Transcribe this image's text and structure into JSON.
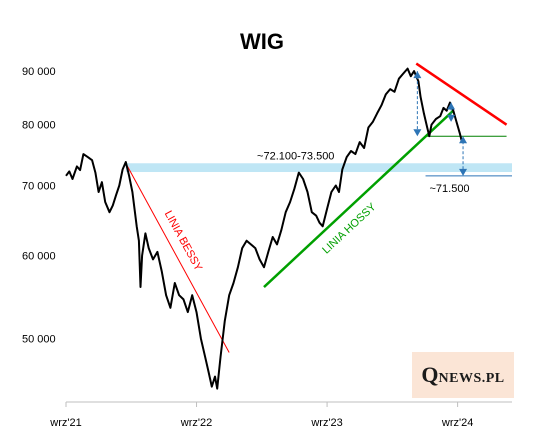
{
  "chart_data": {
    "type": "line",
    "title": "WIG",
    "y_scale": "log",
    "ylim": [
      43500,
      98500
    ],
    "xlim": [
      0,
      41
    ],
    "x_ticks": [
      {
        "x": 0,
        "label": "wrz'21"
      },
      {
        "x": 12,
        "label": "wrz'22"
      },
      {
        "x": 24,
        "label": "wrz'23"
      },
      {
        "x": 36,
        "label": "wrz'24"
      }
    ],
    "y_ticks": [
      {
        "y": 50000,
        "label": "50 000"
      },
      {
        "y": 60000,
        "label": "60 000"
      },
      {
        "y": 70000,
        "label": "70 000"
      },
      {
        "y": 80000,
        "label": "80 000"
      },
      {
        "y": 90000,
        "label": "90 000"
      }
    ],
    "series": [
      {
        "color": "#000000",
        "points": [
          [
            0,
            71500
          ],
          [
            0.3,
            72200
          ],
          [
            0.6,
            71000
          ],
          [
            1,
            73000
          ],
          [
            1.3,
            72400
          ],
          [
            1.6,
            75000
          ],
          [
            2,
            74500
          ],
          [
            2.4,
            74000
          ],
          [
            2.7,
            72000
          ],
          [
            3,
            69000
          ],
          [
            3.3,
            70500
          ],
          [
            3.6,
            67500
          ],
          [
            4,
            66000
          ],
          [
            4.3,
            67000
          ],
          [
            4.6,
            68500
          ],
          [
            4.9,
            70000
          ],
          [
            5.2,
            72500
          ],
          [
            5.5,
            73700
          ],
          [
            5.8,
            71500
          ],
          [
            6.1,
            69000
          ],
          [
            6.3,
            66500
          ],
          [
            6.5,
            64000
          ],
          [
            6.7,
            62000
          ],
          [
            6.85,
            56000
          ],
          [
            7,
            60000
          ],
          [
            7.3,
            63000
          ],
          [
            7.6,
            61000
          ],
          [
            8,
            59500
          ],
          [
            8.4,
            60500
          ],
          [
            8.8,
            58000
          ],
          [
            9.2,
            55000
          ],
          [
            9.6,
            53500
          ],
          [
            10,
            56500
          ],
          [
            10.4,
            55000
          ],
          [
            10.8,
            54500
          ],
          [
            11.2,
            53000
          ],
          [
            11.6,
            55000
          ],
          [
            12,
            53000
          ],
          [
            12.4,
            50000
          ],
          [
            12.8,
            48000
          ],
          [
            13.1,
            46500
          ],
          [
            13.4,
            45000
          ],
          [
            13.7,
            46000
          ],
          [
            13.9,
            44800
          ],
          [
            14.2,
            48000
          ],
          [
            14.6,
            52000
          ],
          [
            15,
            55000
          ],
          [
            15.4,
            56500
          ],
          [
            15.8,
            58500
          ],
          [
            16.2,
            61000
          ],
          [
            16.6,
            62000
          ],
          [
            17,
            61500
          ],
          [
            17.4,
            61000
          ],
          [
            17.8,
            59500
          ],
          [
            18.2,
            58500
          ],
          [
            18.6,
            60500
          ],
          [
            19,
            62500
          ],
          [
            19.4,
            61500
          ],
          [
            19.8,
            63500
          ],
          [
            20.2,
            66000
          ],
          [
            20.6,
            67500
          ],
          [
            21,
            69500
          ],
          [
            21.4,
            72000
          ],
          [
            21.8,
            71000
          ],
          [
            22.2,
            69000
          ],
          [
            22.6,
            66000
          ],
          [
            23,
            65500
          ],
          [
            23.3,
            64500
          ],
          [
            23.6,
            64000
          ],
          [
            24,
            66500
          ],
          [
            24.4,
            69000
          ],
          [
            24.8,
            70000
          ],
          [
            25.1,
            69000
          ],
          [
            25.4,
            72500
          ],
          [
            25.8,
            74500
          ],
          [
            26.2,
            75500
          ],
          [
            26.6,
            75000
          ],
          [
            27,
            77000
          ],
          [
            27.4,
            76000
          ],
          [
            27.8,
            79500
          ],
          [
            28.2,
            80500
          ],
          [
            28.6,
            82000
          ],
          [
            29,
            83500
          ],
          [
            29.4,
            85500
          ],
          [
            29.8,
            86500
          ],
          [
            30.2,
            86000
          ],
          [
            30.6,
            88500
          ],
          [
            31,
            89500
          ],
          [
            31.4,
            90500
          ],
          [
            31.7,
            89000
          ],
          [
            32,
            90000
          ],
          [
            32.4,
            88000
          ],
          [
            32.6,
            85000
          ],
          [
            32.9,
            82000
          ],
          [
            33.2,
            79500
          ],
          [
            33.4,
            78000
          ],
          [
            33.6,
            80000
          ],
          [
            34,
            81000
          ],
          [
            34.4,
            81500
          ],
          [
            34.7,
            83000
          ],
          [
            35,
            82500
          ],
          [
            35.3,
            84000
          ],
          [
            35.6,
            82500
          ],
          [
            35.9,
            80500
          ],
          [
            36.2,
            78500
          ],
          [
            36.4,
            77000
          ]
        ]
      }
    ],
    "annotations": {
      "bessy_line": {
        "label": "LINIA BESSY",
        "color": "#ff0000",
        "from": [
          5.5,
          73500
        ],
        "to": [
          15,
          48500
        ]
      },
      "hossy_line": {
        "label": "LINIA HOSSY",
        "color": "#00a000",
        "from": [
          18.2,
          56000
        ],
        "to": [
          35.6,
          82500
        ]
      },
      "resistance_line": {
        "color": "#ff0000",
        "from": [
          32.2,
          91500
        ],
        "to": [
          40.5,
          80000
        ]
      },
      "support_zone": {
        "label": "~72.100-73.500",
        "color": "#bfe6f5",
        "from_x": 5.5,
        "to_x": 41,
        "y_low": 72100,
        "y_high": 73500
      },
      "target_line": {
        "label": "~71.500",
        "color": "#2e75b6",
        "from_x": 32.5,
        "to_x": 41,
        "y": 71500
      },
      "neckline": {
        "color": "#008000",
        "from_x": 33.2,
        "to_x": 40.5,
        "y": 78000
      },
      "arrows": [
        {
          "x": 32.3,
          "from": 90000,
          "to": 78000
        },
        {
          "x": 35.4,
          "from": 84000,
          "to": 80500
        },
        {
          "x": 36.5,
          "from": 78000,
          "to": 71500
        }
      ]
    },
    "grid": false,
    "legend": "none"
  },
  "brand": {
    "q": "Q",
    "rest": "NEWS.PL"
  }
}
